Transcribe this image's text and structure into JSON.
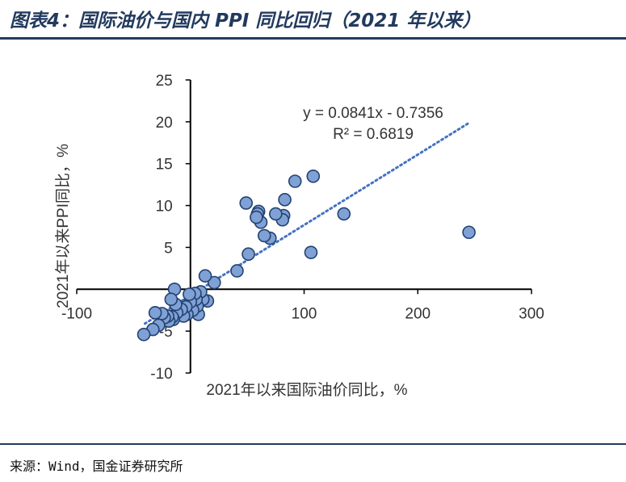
{
  "figure_title": "图表4：国际油价与国内 PPI 同比回归（2021 年以来）",
  "source_note": "来源：Wind，国金证券研究所",
  "colors": {
    "title": "#223a5e",
    "point_fill": "#7fa1d6",
    "point_stroke": "#23426e",
    "trendline": "#4472c4",
    "axis": "#000000"
  },
  "chart_data": {
    "type": "scatter",
    "title": "",
    "xlabel": "2021年以来国际油价同比，%",
    "ylabel": "2021年以来PPI同比，%",
    "xlim": [
      -100,
      300
    ],
    "ylim": [
      -10,
      25
    ],
    "x_ticks": [
      -100,
      0,
      100,
      200,
      300
    ],
    "x_tick_labels": [
      "-100",
      "",
      "100",
      "200",
      "300"
    ],
    "y_ticks": [
      -10,
      -5,
      0,
      5,
      10,
      15,
      20,
      25
    ],
    "y_tick_labels": [
      "-10",
      "-5",
      "0",
      "5",
      "10",
      "15",
      "20",
      "25"
    ],
    "grid": false,
    "legend": "none",
    "trendline": {
      "slope": 0.0841,
      "intercept": -0.7356,
      "x_range": [
        -40,
        245
      ],
      "equation_label": "y = 0.0841x - 0.7356",
      "r2_label": "R² = 0.6819"
    },
    "points": [
      {
        "x": 245,
        "y": 6.8
      },
      {
        "x": 135,
        "y": 9.0
      },
      {
        "x": 108,
        "y": 13.5
      },
      {
        "x": 106,
        "y": 4.4
      },
      {
        "x": 92,
        "y": 12.9
      },
      {
        "x": 83,
        "y": 10.7
      },
      {
        "x": 82,
        "y": 8.8
      },
      {
        "x": 81,
        "y": 8.3
      },
      {
        "x": 75,
        "y": 9.0
      },
      {
        "x": 70,
        "y": 6.1
      },
      {
        "x": 65,
        "y": 6.4
      },
      {
        "x": 62,
        "y": 8.0
      },
      {
        "x": 60,
        "y": 9.3
      },
      {
        "x": 59,
        "y": 9.0
      },
      {
        "x": 58,
        "y": 8.6
      },
      {
        "x": 49,
        "y": 10.3
      },
      {
        "x": 51,
        "y": 4.2
      },
      {
        "x": 41,
        "y": 2.2
      },
      {
        "x": 21,
        "y": 0.8
      },
      {
        "x": 13,
        "y": 1.6
      },
      {
        "x": 15,
        "y": -1.4
      },
      {
        "x": 11,
        "y": -1.2
      },
      {
        "x": 9,
        "y": -0.3
      },
      {
        "x": 7,
        "y": -3.0
      },
      {
        "x": 6,
        "y": -2.0
      },
      {
        "x": 5,
        "y": -1.2
      },
      {
        "x": 4,
        "y": -0.5
      },
      {
        "x": 2,
        "y": -2.5
      },
      {
        "x": 0,
        "y": -1.5
      },
      {
        "x": -1,
        "y": -0.6
      },
      {
        "x": -3,
        "y": -3.0
      },
      {
        "x": -4,
        "y": -2.1
      },
      {
        "x": -6,
        "y": -3.2
      },
      {
        "x": -8,
        "y": -2.4
      },
      {
        "x": -12,
        "y": -2.8
      },
      {
        "x": -13,
        "y": -1.8
      },
      {
        "x": -14,
        "y": 0.0
      },
      {
        "x": -15,
        "y": -3.6
      },
      {
        "x": -16,
        "y": -3.3
      },
      {
        "x": -17,
        "y": -1.2
      },
      {
        "x": -19,
        "y": -3.8
      },
      {
        "x": -20,
        "y": -3.2
      },
      {
        "x": -23,
        "y": -3.4
      },
      {
        "x": -25,
        "y": -2.9
      },
      {
        "x": -28,
        "y": -4.3
      },
      {
        "x": -31,
        "y": -2.8
      },
      {
        "x": -33,
        "y": -4.8
      },
      {
        "x": -41,
        "y": -5.4
      }
    ]
  }
}
